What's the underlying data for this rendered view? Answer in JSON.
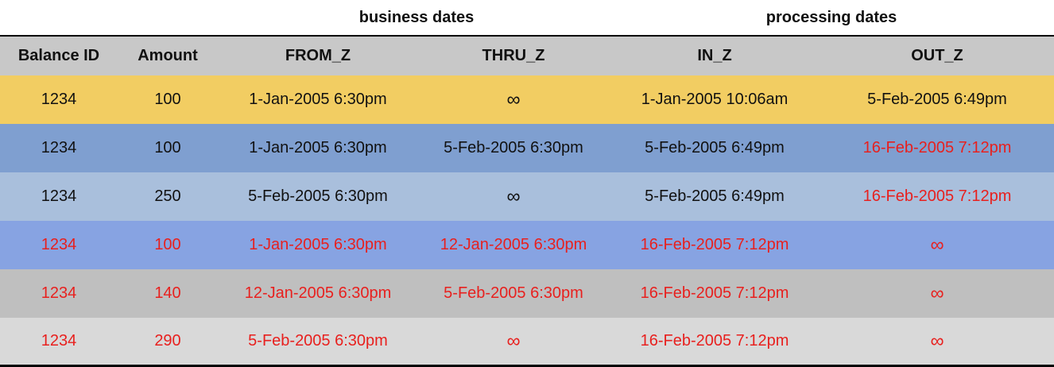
{
  "groups": {
    "business": "business dates",
    "processing": "processing dates"
  },
  "columns": [
    "Balance ID",
    "Amount",
    "FROM_Z",
    "THRU_Z",
    "IN_Z",
    "OUT_Z"
  ],
  "colors": {
    "black_text": "#111111",
    "red_text": "#e8201e",
    "header_bg": "#c8c8c8"
  },
  "rows": [
    {
      "bg": "#f2cd62",
      "cells": [
        {
          "text": "1234",
          "color": "#111111"
        },
        {
          "text": "100",
          "color": "#111111"
        },
        {
          "text": "1-Jan-2005 6:30pm",
          "color": "#111111"
        },
        {
          "text": "∞",
          "color": "#111111"
        },
        {
          "text": "1-Jan-2005 10:06am",
          "color": "#111111"
        },
        {
          "text": "5-Feb-2005 6:49pm",
          "color": "#111111"
        }
      ]
    },
    {
      "bg": "#7f9fd0",
      "cells": [
        {
          "text": "1234",
          "color": "#111111"
        },
        {
          "text": "100",
          "color": "#111111"
        },
        {
          "text": "1-Jan-2005 6:30pm",
          "color": "#111111"
        },
        {
          "text": "5-Feb-2005 6:30pm",
          "color": "#111111"
        },
        {
          "text": "5-Feb-2005 6:49pm",
          "color": "#111111"
        },
        {
          "text": "16-Feb-2005 7:12pm",
          "color": "#e8201e"
        }
      ]
    },
    {
      "bg": "#a9bfdc",
      "cells": [
        {
          "text": "1234",
          "color": "#111111"
        },
        {
          "text": "250",
          "color": "#111111"
        },
        {
          "text": "5-Feb-2005 6:30pm",
          "color": "#111111"
        },
        {
          "text": "∞",
          "color": "#111111"
        },
        {
          "text": "5-Feb-2005 6:49pm",
          "color": "#111111"
        },
        {
          "text": "16-Feb-2005 7:12pm",
          "color": "#e8201e"
        }
      ]
    },
    {
      "bg": "#87a3e2",
      "cells": [
        {
          "text": "1234",
          "color": "#e8201e"
        },
        {
          "text": "100",
          "color": "#e8201e"
        },
        {
          "text": "1-Jan-2005 6:30pm",
          "color": "#e8201e"
        },
        {
          "text": "12-Jan-2005 6:30pm",
          "color": "#e8201e"
        },
        {
          "text": "16-Feb-2005 7:12pm",
          "color": "#e8201e"
        },
        {
          "text": "∞",
          "color": "#e8201e"
        }
      ]
    },
    {
      "bg": "#bfbfbf",
      "cells": [
        {
          "text": "1234",
          "color": "#e8201e"
        },
        {
          "text": "140",
          "color": "#e8201e"
        },
        {
          "text": "12-Jan-2005 6:30pm",
          "color": "#e8201e"
        },
        {
          "text": "5-Feb-2005 6:30pm",
          "color": "#e8201e"
        },
        {
          "text": "16-Feb-2005 7:12pm",
          "color": "#e8201e"
        },
        {
          "text": "∞",
          "color": "#e8201e"
        }
      ]
    },
    {
      "bg": "#d9d9d9",
      "cells": [
        {
          "text": "1234",
          "color": "#e8201e"
        },
        {
          "text": "290",
          "color": "#e8201e"
        },
        {
          "text": "5-Feb-2005 6:30pm",
          "color": "#e8201e"
        },
        {
          "text": "∞",
          "color": "#e8201e"
        },
        {
          "text": "16-Feb-2005 7:12pm",
          "color": "#e8201e"
        },
        {
          "text": "∞",
          "color": "#e8201e"
        }
      ]
    }
  ]
}
